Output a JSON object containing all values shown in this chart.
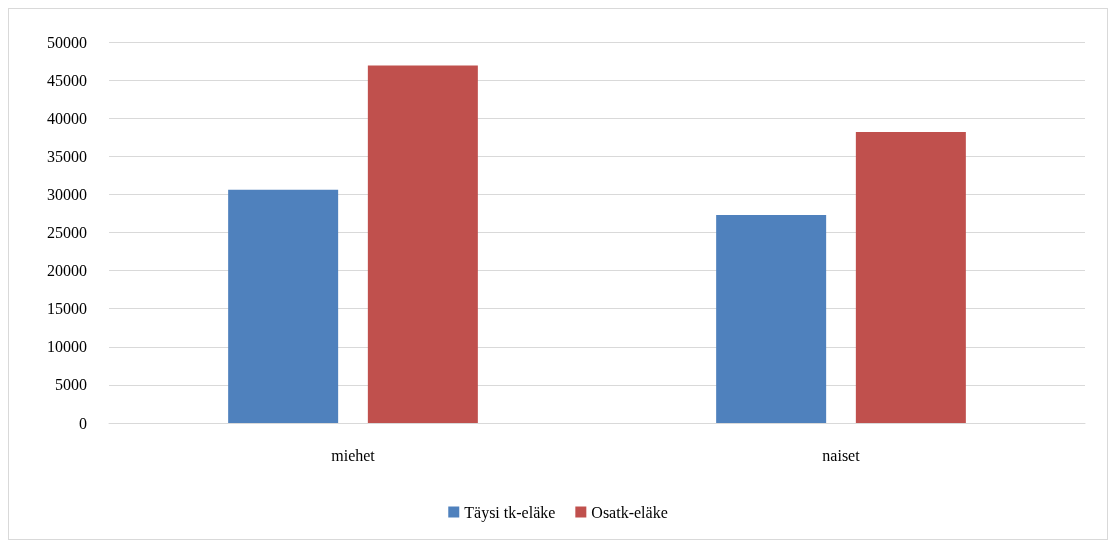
{
  "chart_data": {
    "type": "bar",
    "categories": [
      "miehet",
      "naiset"
    ],
    "series": [
      {
        "name": "Täysi tk-eläke",
        "color": "#4f81bd",
        "values": [
          30600,
          27300
        ]
      },
      {
        "name": "Osatk-eläke",
        "color": "#c0504d",
        "values": [
          46900,
          38200
        ]
      }
    ],
    "ylim": [
      0,
      50000
    ],
    "yticks": [
      0,
      5000,
      10000,
      15000,
      20000,
      25000,
      30000,
      35000,
      40000,
      45000,
      50000
    ],
    "grid": "y",
    "legend": "bottom"
  }
}
